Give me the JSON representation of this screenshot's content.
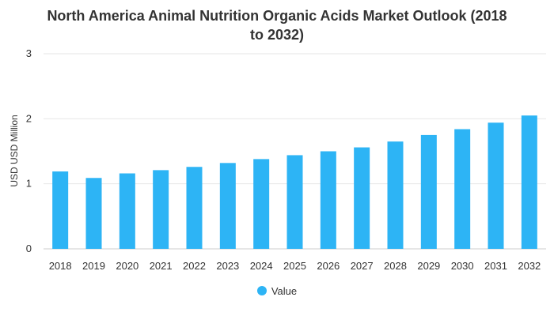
{
  "chart_data": {
    "type": "bar",
    "title_lines": [
      "North America Animal Nutrition Organic Acids Market Outlook (2018",
      "to 2032)"
    ],
    "xlabel": "",
    "ylabel": "USD USD Million",
    "categories": [
      "2018",
      "2019",
      "2020",
      "2021",
      "2022",
      "2023",
      "2024",
      "2025",
      "2026",
      "2027",
      "2028",
      "2029",
      "2030",
      "2031",
      "2032"
    ],
    "series": [
      {
        "name": "Value",
        "values": [
          1.19,
          1.09,
          1.16,
          1.21,
          1.26,
          1.32,
          1.38,
          1.44,
          1.5,
          1.56,
          1.65,
          1.75,
          1.84,
          1.94,
          2.05
        ]
      }
    ],
    "ylim": [
      0,
      3
    ],
    "yticks": [
      "0",
      "1",
      "2",
      "3"
    ],
    "grid": true,
    "legend_position": "bottom",
    "bar_color": "#2db4f5"
  }
}
